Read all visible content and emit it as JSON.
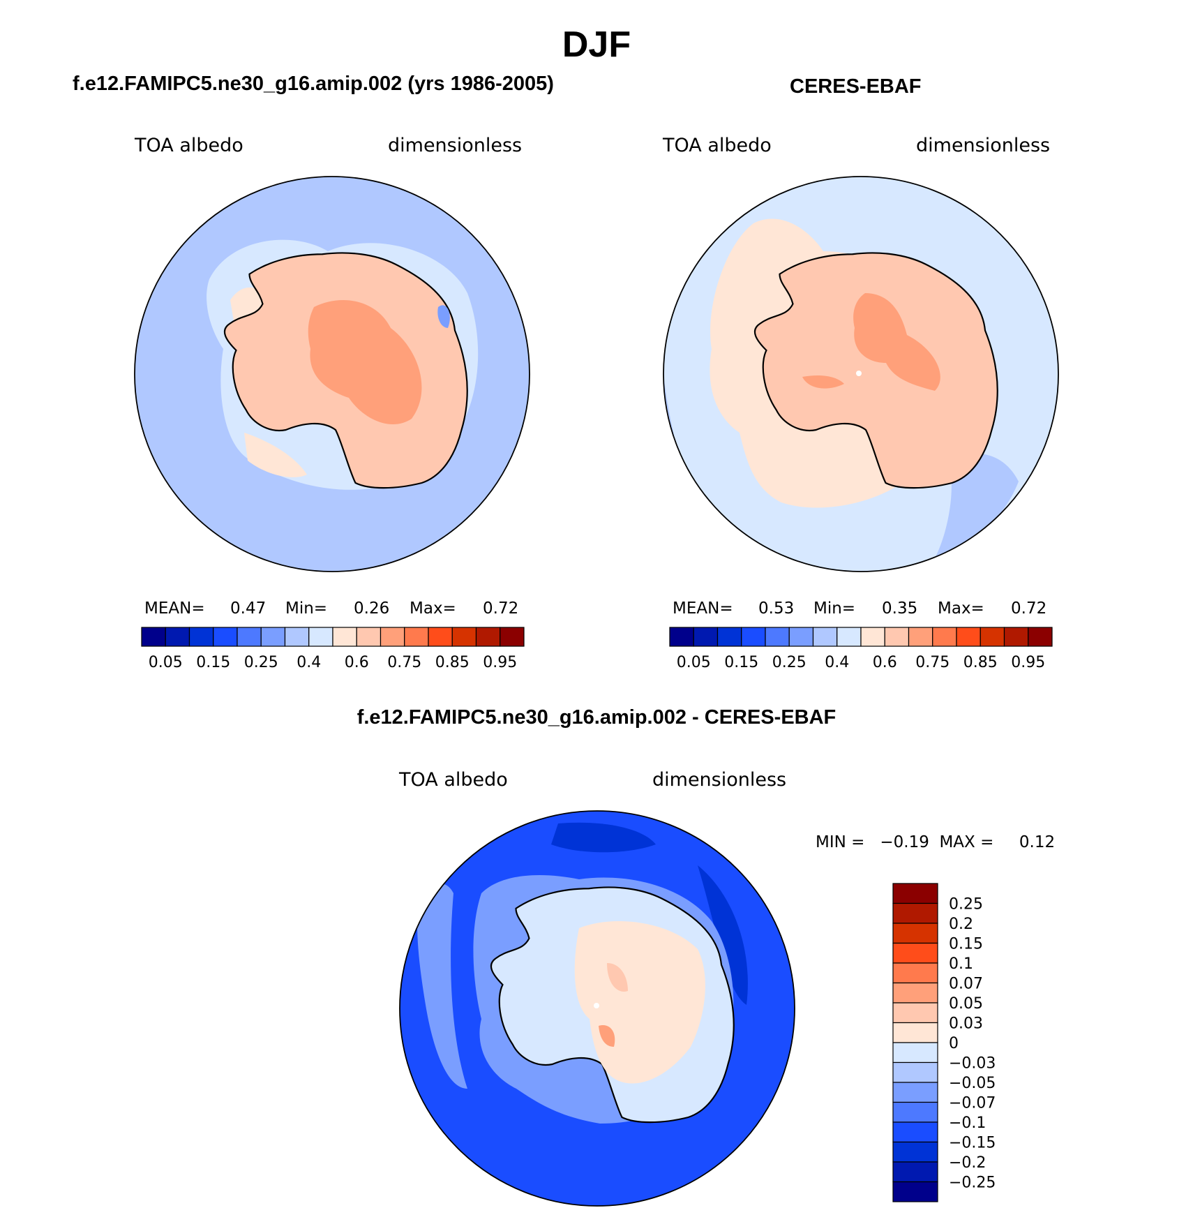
{
  "title": "DJF",
  "panels": {
    "model": {
      "title": "f.e12.FAMIPC5.ne30_g16.amip.002 (yrs 1986-2005)",
      "variable": "TOA albedo",
      "units": "dimensionless",
      "stats": {
        "mean_label": "MEAN=",
        "mean": "0.47",
        "min_label": "Min=",
        "min": "0.26",
        "max_label": "Max=",
        "max": "0.72"
      }
    },
    "obs": {
      "title": "CERES-EBAF",
      "variable": "TOA albedo",
      "units": "dimensionless",
      "stats": {
        "mean_label": "MEAN=",
        "mean": "0.53",
        "min_label": "Min=",
        "min": "0.35",
        "max_label": "Max=",
        "max": "0.72"
      }
    },
    "diff": {
      "title": "f.e12.FAMIPC5.ne30_g16.amip.002 - CERES-EBAF",
      "variable": "TOA albedo",
      "units": "dimensionless",
      "minmax": "MIN =   −0.19  MAX =     0.12"
    }
  },
  "colorbar_abs": {
    "colors": [
      "#00008b",
      "#0019b0",
      "#0033d6",
      "#1a4dff",
      "#4d79ff",
      "#7a9eff",
      "#b0c8ff",
      "#d7e8ff",
      "#ffe6d6",
      "#ffc8b0",
      "#ffa07a",
      "#ff7a4d",
      "#ff4d1a",
      "#d63300",
      "#b01900",
      "#8b0000"
    ],
    "labels": [
      "0.05",
      "0.15",
      "0.25",
      "0.4",
      "0.6",
      "0.75",
      "0.85",
      "0.95"
    ]
  },
  "colorbar_diff": {
    "colors": [
      "#8b0000",
      "#b01900",
      "#d63300",
      "#ff4d1a",
      "#ff7a4d",
      "#ffa07a",
      "#ffc8b0",
      "#ffe6d6",
      "#d7e8ff",
      "#b0c8ff",
      "#7a9eff",
      "#4d79ff",
      "#1a4dff",
      "#0033d6",
      "#0019b0",
      "#00008b"
    ],
    "labels": [
      "0.25",
      "0.2",
      "0.15",
      "0.1",
      "0.07",
      "0.05",
      "0.03",
      "0",
      "−0.03",
      "−0.05",
      "−0.07",
      "−0.1",
      "−0.15",
      "−0.2",
      "−0.25"
    ]
  }
}
